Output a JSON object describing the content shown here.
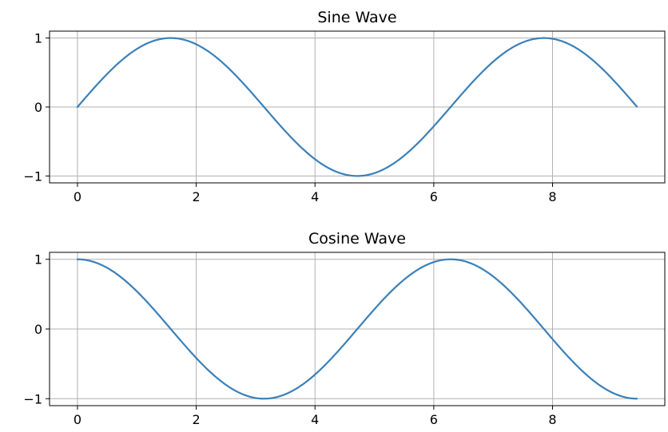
{
  "chart_data": [
    {
      "type": "line",
      "title": "Sine Wave",
      "function": "sin",
      "xlabel": "",
      "ylabel": "",
      "x_range": [
        0,
        9.42
      ],
      "xlim": [
        -0.47,
        9.89
      ],
      "ylim": [
        -1.1,
        1.1
      ],
      "xticks": [
        0,
        2,
        4,
        6,
        8
      ],
      "yticks": [
        -1,
        0,
        1
      ],
      "xtick_labels": [
        "0",
        "2",
        "4",
        "6",
        "8"
      ],
      "ytick_labels": [
        "−1",
        "0",
        "1"
      ],
      "grid": true,
      "series": [
        {
          "x": [
            0,
            0.5,
            1,
            1.5,
            2,
            2.5,
            3,
            3.5,
            4,
            4.5,
            5,
            5.5,
            6,
            6.5,
            7,
            7.5,
            8,
            8.5,
            9,
            9.42
          ],
          "y": [
            0,
            0.479,
            0.841,
            0.997,
            0.909,
            0.598,
            0.141,
            -0.351,
            -0.757,
            -0.978,
            -0.959,
            -0.706,
            -0.279,
            0.215,
            0.657,
            0.938,
            0.989,
            0.798,
            0.412,
            0.004
          ],
          "color": "#3a80b9"
        }
      ]
    },
    {
      "type": "line",
      "title": "Cosine Wave",
      "function": "cos",
      "xlabel": "",
      "ylabel": "",
      "x_range": [
        0,
        9.42
      ],
      "xlim": [
        -0.47,
        9.89
      ],
      "ylim": [
        -1.1,
        1.1
      ],
      "xticks": [
        0,
        2,
        4,
        6,
        8
      ],
      "yticks": [
        -1,
        0,
        1
      ],
      "xtick_labels": [
        "0",
        "2",
        "4",
        "6",
        "8"
      ],
      "ytick_labels": [
        "−1",
        "0",
        "1"
      ],
      "grid": true,
      "series": [
        {
          "x": [
            0,
            0.5,
            1,
            1.5,
            2,
            2.5,
            3,
            3.5,
            4,
            4.5,
            5,
            5.5,
            6,
            6.5,
            7,
            7.5,
            8,
            8.5,
            9,
            9.42
          ],
          "y": [
            1,
            0.878,
            0.54,
            0.071,
            -0.416,
            -0.801,
            -0.99,
            -0.936,
            -0.654,
            -0.211,
            0.284,
            0.709,
            0.96,
            0.977,
            0.754,
            0.347,
            -0.146,
            -0.602,
            -0.911,
            -1
          ],
          "color": "#3a80b9"
        }
      ]
    }
  ]
}
